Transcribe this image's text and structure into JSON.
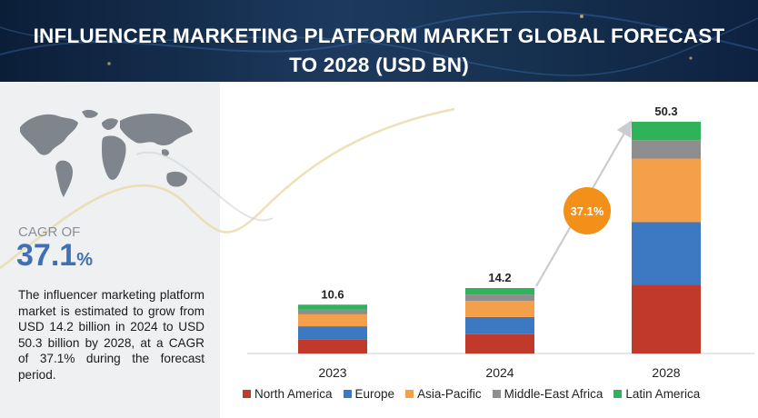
{
  "header": {
    "title_line1": "INFLUENCER MARKETING PLATFORM MARKET GLOBAL FORECAST",
    "title_line2": "TO 2028 (USD BN)"
  },
  "sidebar": {
    "cagr_label": "CAGR OF",
    "cagr_number": "37.1",
    "cagr_unit": "%",
    "description": "The influencer marketing platform market is estimated to grow from USD 14.2 billion in 2024 to USD 50.3 billion by 2028, at a CAGR of 37.1% during the forecast period."
  },
  "chart_data": {
    "type": "bar",
    "stacked": true,
    "categories": [
      "2023",
      "2024",
      "2028"
    ],
    "totals": [
      "10.6",
      "14.2",
      "50.3"
    ],
    "cagr_badge": "37.1%",
    "series": [
      {
        "name": "North America",
        "color": "#c0392b",
        "values": [
          3.1,
          4.2,
          14.9
        ]
      },
      {
        "name": "Europe",
        "color": "#3d78c2",
        "values": [
          2.8,
          3.7,
          13.6
        ]
      },
      {
        "name": "Asia-Pacific",
        "color": "#f4a04a",
        "values": [
          2.6,
          3.5,
          13.8
        ]
      },
      {
        "name": "Middle-East Africa",
        "color": "#8e8e8e",
        "values": [
          1.0,
          1.4,
          4.0
        ]
      },
      {
        "name": "Latin America",
        "color": "#2eb35a",
        "values": [
          1.1,
          1.4,
          4.0
        ]
      }
    ],
    "legend_position": "bottom",
    "grid": false
  }
}
